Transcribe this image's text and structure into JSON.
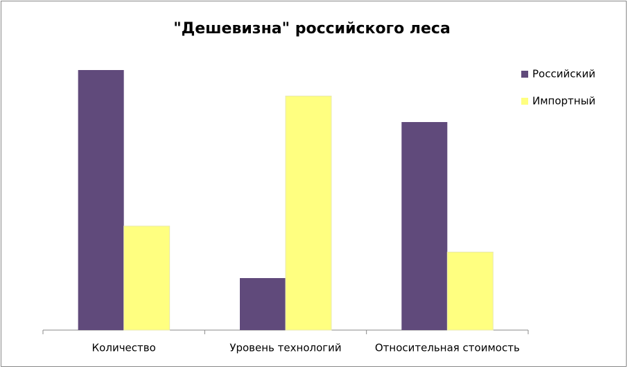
{
  "chart_data": {
    "type": "bar",
    "title": "\"Дешевизна\" российского леса",
    "categories": [
      "Количество",
      "Уровень технологий",
      "Относительная стоимость"
    ],
    "series": [
      {
        "name": "Российский",
        "color": "#604a7b",
        "values": [
          10,
          2,
          8
        ]
      },
      {
        "name": "Импортный",
        "color": "#ffff80",
        "values": [
          4,
          9,
          3
        ]
      }
    ],
    "ylim": [
      0,
      10
    ],
    "legend": "right"
  }
}
